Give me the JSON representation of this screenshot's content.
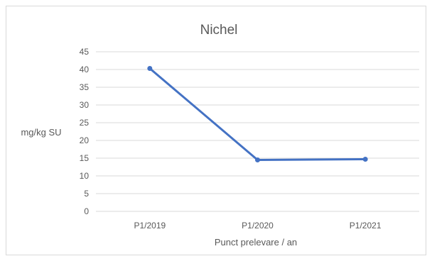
{
  "chart_data": {
    "type": "line",
    "title": "Nichel",
    "xlabel": "Punct prelevare / an",
    "ylabel": "mg/kg SU",
    "categories": [
      "P1/2019",
      "P1/2020",
      "P1/2021"
    ],
    "series": [
      {
        "values": [
          40.3,
          14.5,
          14.7
        ],
        "color": "#4472c4"
      }
    ],
    "ylim": [
      0,
      45
    ],
    "yticks": [
      0,
      5,
      10,
      15,
      20,
      25,
      30,
      35,
      40,
      45
    ],
    "grid": true,
    "gridColor": "#d9d9d9",
    "legend": "none"
  }
}
